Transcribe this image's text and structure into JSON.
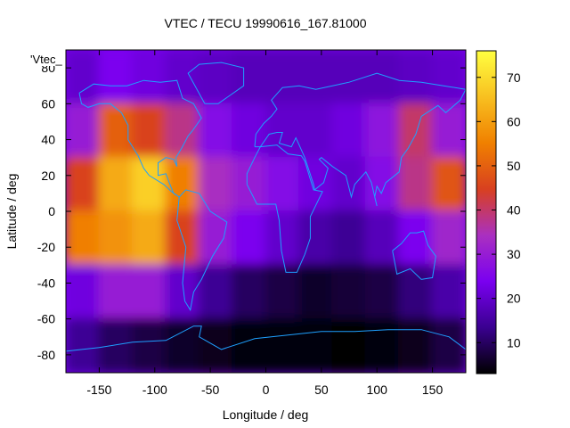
{
  "chart_data": {
    "type": "heatmap",
    "title": "VTEC / TECU 19990616_167.81000",
    "xlabel": "Longitude / deg",
    "ylabel": "Latitude / deg",
    "legend_entry": "'Vtec_",
    "xlim": [
      -180,
      180
    ],
    "ylim": [
      -90,
      90
    ],
    "x_ticks": [
      -150,
      -100,
      -50,
      0,
      50,
      100,
      150
    ],
    "y_ticks": [
      -80,
      -60,
      -40,
      -20,
      0,
      20,
      40,
      60,
      80
    ],
    "colorbar": {
      "range": [
        3,
        76
      ],
      "ticks": [
        10,
        20,
        30,
        40,
        50,
        60,
        70
      ],
      "palette": [
        "#000000",
        "#3a0090",
        "#7a00f0",
        "#aa30c0",
        "#d84020",
        "#f08000",
        "#f8c020",
        "#ffff40"
      ]
    },
    "z_grid": {
      "lon_centers": [
        -165,
        -135,
        -105,
        -75,
        -45,
        -15,
        15,
        45,
        75,
        105,
        135,
        165
      ],
      "lat_centers": [
        75,
        45,
        15,
        -15,
        -45,
        -75
      ],
      "values": [
        [
          20,
          24,
          22,
          20,
          19,
          18,
          18,
          18,
          18,
          18,
          19,
          20
        ],
        [
          30,
          50,
          45,
          38,
          26,
          22,
          20,
          20,
          22,
          28,
          40,
          30
        ],
        [
          45,
          62,
          68,
          55,
          34,
          30,
          26,
          22,
          20,
          26,
          38,
          48
        ],
        [
          55,
          58,
          62,
          45,
          30,
          24,
          20,
          16,
          14,
          18,
          24,
          32
        ],
        [
          22,
          30,
          30,
          20,
          14,
          10,
          8,
          6,
          7,
          8,
          12,
          16
        ],
        [
          14,
          10,
          8,
          6,
          5,
          4,
          4,
          4,
          3,
          4,
          5,
          8
        ]
      ]
    },
    "coastline_color": "#1ea0ff"
  }
}
